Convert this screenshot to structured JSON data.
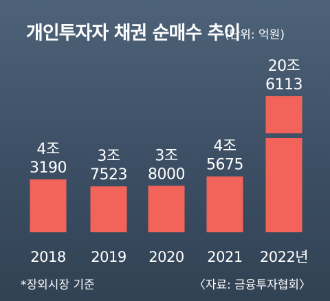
{
  "chart_data": {
    "type": "bar",
    "title": "개인투자자 채권 순매수 추이",
    "unit": "(단위: 억원)",
    "categories": [
      "2018",
      "2019",
      "2020",
      "2021",
      "2022년"
    ],
    "values": [
      43190,
      37523,
      38000,
      45675,
      206113
    ],
    "value_labels": [
      [
        "4조",
        "3190"
      ],
      [
        "3조",
        "7523"
      ],
      [
        "3조",
        "8000"
      ],
      [
        "4조",
        "5675"
      ],
      [
        "20조",
        "6113"
      ]
    ],
    "axis_break": true,
    "footnote": "*장외시장 기준",
    "source": "〈자료: 금융투자협회〉",
    "colors": {
      "bar": "#f2645a",
      "text": "#ffffff",
      "background_top": "#4d6278",
      "background_bottom": "#314254"
    }
  }
}
